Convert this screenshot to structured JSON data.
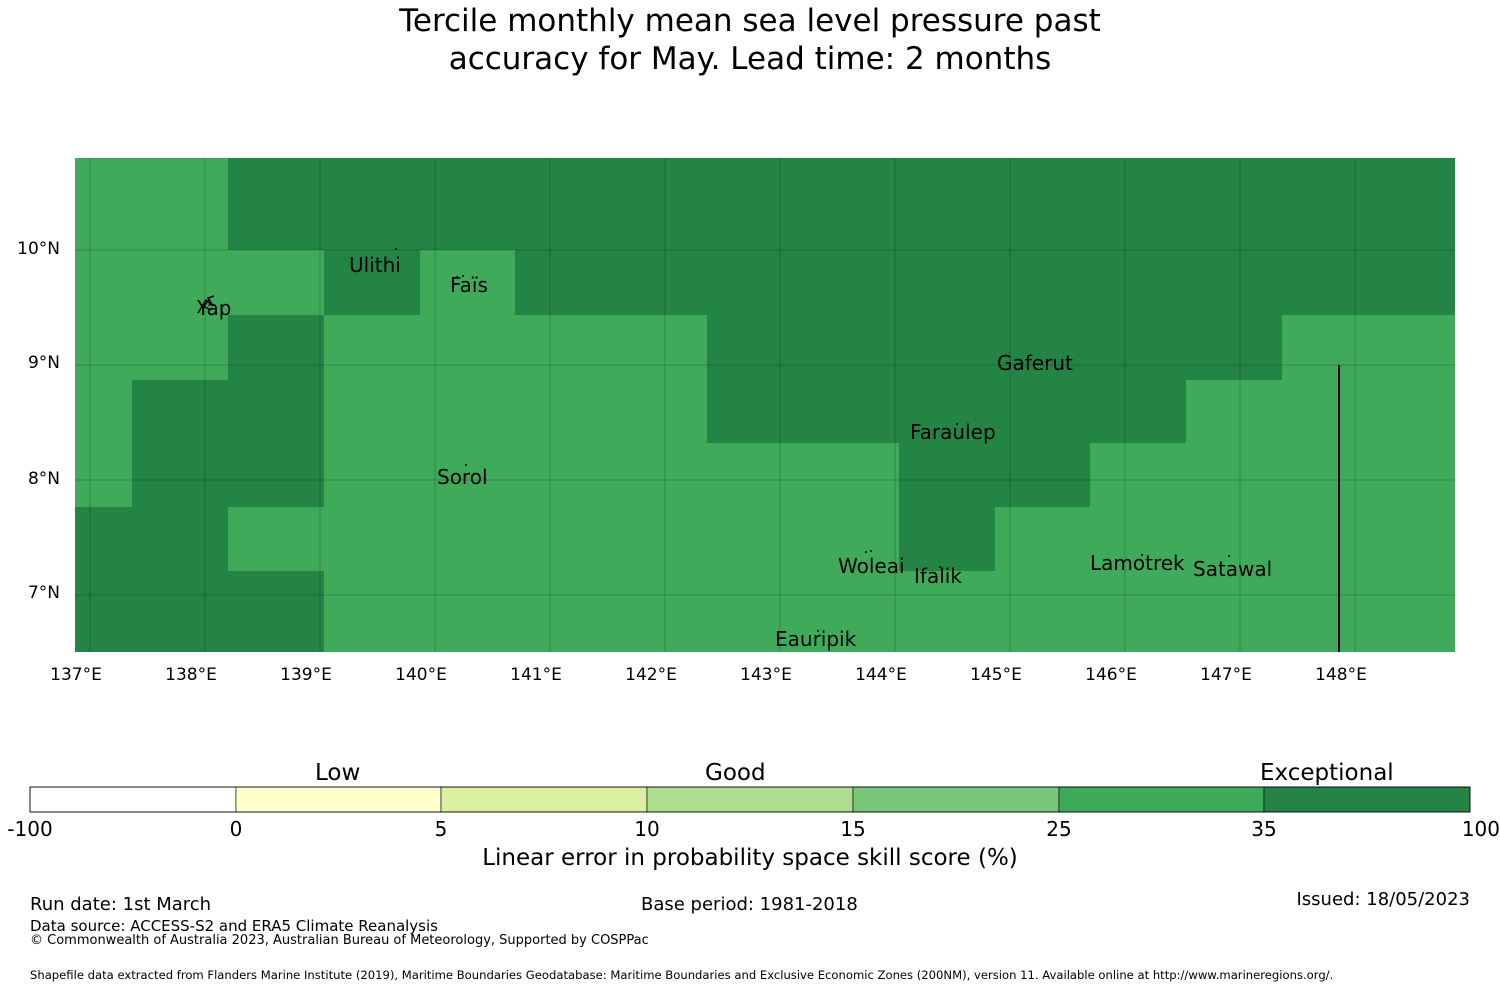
{
  "title_line1": "Tercile monthly mean sea level pressure past",
  "title_line2": "accuracy for May. Lead time: 2 months",
  "map": {
    "lat_labels": [
      "10°N",
      "9°N",
      "8°N",
      "7°N"
    ],
    "lon_labels": [
      "137°E",
      "138°E",
      "139°E",
      "140°E",
      "141°E",
      "142°E",
      "143°E",
      "144°E",
      "145°E",
      "146°E",
      "147°E",
      "148°E"
    ],
    "places": [
      "Ulithi",
      "Yap",
      "Faïs",
      "Gaferut",
      "Faraulep",
      "Sorol",
      "Woleai",
      "Ifalik",
      "Lamotrek",
      "Satawal",
      "Eauripik"
    ],
    "colors": {
      "category_25_35": "#3faa5a",
      "category_35_100": "#238445"
    }
  },
  "colorbar": {
    "categories": [
      "Low",
      "Good",
      "Exceptional"
    ],
    "ticks": [
      "-100",
      "0",
      "5",
      "10",
      "15",
      "25",
      "35",
      "100"
    ],
    "colors": [
      "#ffffff",
      "#ffffcc",
      "#d9f0a3",
      "#addd8e",
      "#78c679",
      "#3faa5a",
      "#238445"
    ],
    "label": "Linear error in probability space skill score (%)"
  },
  "footer": {
    "run_date": "Run date: 1st March",
    "base_period": "Base period: 1981-2018",
    "issued": "Issued: 18/05/2023",
    "data_source": "Data source: ACCESS-S2 and ERA5 Climate Reanalysis",
    "copyright": "© Commonwealth of Australia 2023, Australian Bureau of Meteorology, Supported by COSPPac",
    "shapefile": "Shapefile data extracted from Flanders Marine Institute (2019), Maritime Boundaries Geodatabase: Maritime Boundaries and Exclusive Economic Zones (200NM), version 11. Available online at http://www.marineregions.org/."
  }
}
